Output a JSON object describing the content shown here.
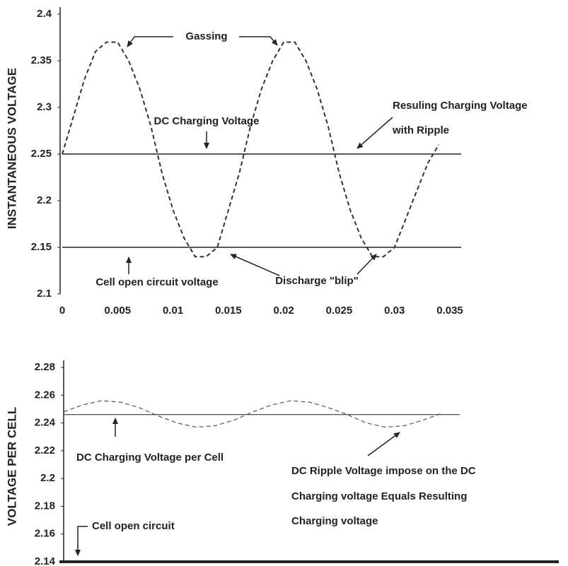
{
  "chart_data": [
    {
      "type": "line",
      "ylabel": "INSTANTANEOUS VOLTAGE",
      "xlim": [
        0,
        0.035
      ],
      "xticks": [
        0,
        0.005,
        0.01,
        0.015,
        0.02,
        0.025,
        0.03,
        0.035
      ],
      "ylim": [
        2.1,
        2.4
      ],
      "yticks": [
        2.1,
        2.15,
        2.2,
        2.25,
        2.3,
        2.35,
        2.4
      ],
      "x": [
        0,
        0.001,
        0.002,
        0.003,
        0.004,
        0.005,
        0.006,
        0.007,
        0.008,
        0.009,
        0.01,
        0.011,
        0.012,
        0.013,
        0.014,
        0.015,
        0.016,
        0.017,
        0.018,
        0.019,
        0.02,
        0.021,
        0.022,
        0.023,
        0.024,
        0.025,
        0.026,
        0.027,
        0.028,
        0.029,
        0.03,
        0.031,
        0.032,
        0.033,
        0.034
      ],
      "values": [
        2.25,
        2.29,
        2.33,
        2.36,
        2.37,
        2.37,
        2.35,
        2.32,
        2.28,
        2.23,
        2.19,
        2.16,
        2.14,
        2.14,
        2.15,
        2.19,
        2.23,
        2.28,
        2.32,
        2.35,
        2.37,
        2.37,
        2.35,
        2.32,
        2.28,
        2.23,
        2.19,
        2.16,
        2.14,
        2.14,
        2.15,
        2.18,
        2.21,
        2.24,
        2.26
      ],
      "line_style": "dashed",
      "color": "#333333",
      "hlines": [
        2.25,
        2.15
      ],
      "annotations": [
        "Gassing",
        "DC Charging Voltage",
        "Resuling Charging Voltage",
        "with Ripple",
        "Cell open circuit voltage",
        "Discharge \"blip\""
      ]
    },
    {
      "type": "line",
      "ylabel": "VOLTAGE PER CELL",
      "ylim": [
        2.14,
        2.28
      ],
      "yticks": [
        2.14,
        2.16,
        2.18,
        2.2,
        2.22,
        2.24,
        2.26,
        2.28
      ],
      "values": [
        2.248,
        2.253,
        2.256,
        2.255,
        2.251,
        2.245,
        2.24,
        2.237,
        2.238,
        2.242,
        2.248,
        2.253,
        2.256,
        2.255,
        2.251,
        2.246,
        2.24,
        2.237,
        2.238,
        2.242,
        2.247
      ],
      "line_style": "dashed",
      "color": "#555555",
      "hlines": [
        2.246,
        2.14
      ],
      "annotations": [
        "DC Charging Voltage per Cell",
        "Cell open circuit",
        "DC Ripple Voltage impose on the DC",
        "Charging voltage Equals Resulting",
        "Charging voltage"
      ]
    }
  ]
}
